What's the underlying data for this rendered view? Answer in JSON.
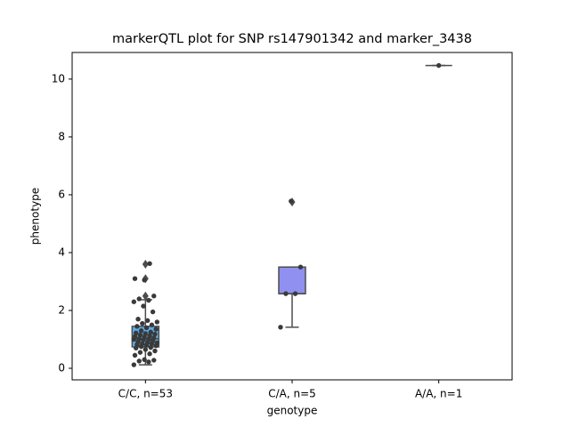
{
  "chart_data": {
    "type": "box",
    "title": "markerQTL plot for SNP rs147901342 and marker_3438",
    "x_label": "genotype",
    "y_label": "phenotype",
    "categories": [
      "C/C, n=53",
      "C/A, n=5",
      "A/A, n=1"
    ],
    "ylim": [
      -0.4,
      10.92
    ],
    "yticks": [
      0,
      2,
      4,
      6,
      8,
      10
    ],
    "point_color": "#3a3a3a",
    "edge_color": "#4d4d4d",
    "boxes": [
      {
        "color": "#5aaee8",
        "whislo": 0.12,
        "q1": 0.74,
        "med": 1.02,
        "q3": 1.45,
        "whishi": 2.37,
        "fliers": [
          2.5,
          3.1,
          3.6
        ],
        "points": [
          0.12,
          0.22,
          0.25,
          0.28,
          0.3,
          0.45,
          0.5,
          0.55,
          0.6,
          0.65,
          0.7,
          0.72,
          0.75,
          0.78,
          0.8,
          0.82,
          0.85,
          0.85,
          0.88,
          0.9,
          0.92,
          0.95,
          0.98,
          1.0,
          1.0,
          1.02,
          1.05,
          1.08,
          1.1,
          1.12,
          1.15,
          1.18,
          1.2,
          1.22,
          1.25,
          1.3,
          1.35,
          1.4,
          1.45,
          1.5,
          1.55,
          1.6,
          1.65,
          1.7,
          1.95,
          2.15,
          2.3,
          2.35,
          2.4,
          2.5,
          3.05,
          3.1,
          3.62
        ]
      },
      {
        "color": "#9090f0",
        "whislo": 1.42,
        "q1": 2.58,
        "med": 2.58,
        "q3": 3.5,
        "whishi": 3.5,
        "fliers": [
          5.75
        ],
        "points": [
          1.42,
          2.58,
          2.58,
          3.5,
          5.78
        ]
      },
      {
        "color": "#c8a0f0",
        "whislo": 10.47,
        "q1": 10.47,
        "med": 10.47,
        "q3": 10.47,
        "whishi": 10.47,
        "fliers": [],
        "points": [
          10.47
        ]
      }
    ]
  }
}
